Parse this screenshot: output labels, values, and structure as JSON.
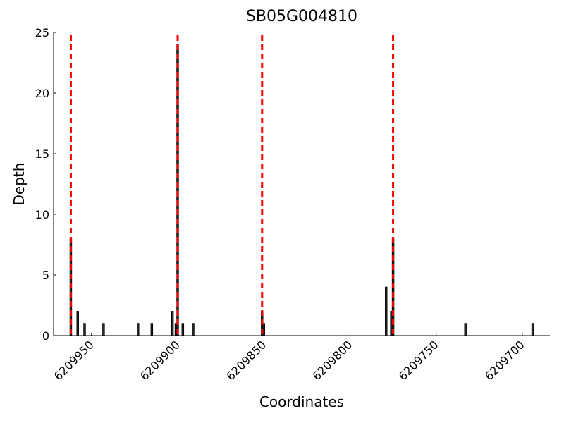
{
  "chart_data": {
    "type": "bar",
    "title": "SB05G004810",
    "x_label": "Coordinates",
    "y_label": "Depth",
    "x": [
      6209962,
      6209958,
      6209954,
      6209943,
      6209923,
      6209915,
      6209903,
      6209901,
      6209900,
      6209897,
      6209891,
      6209851,
      6209850,
      6209779,
      6209776,
      6209775,
      6209733,
      6209694
    ],
    "values": [
      8,
      2,
      1,
      1,
      1,
      1,
      2,
      1,
      24,
      1,
      1,
      2,
      1,
      4,
      2,
      8,
      1,
      1
    ],
    "color": "#333333",
    "edge_color": "#000000",
    "vlines": [
      6209962,
      6209900,
      6209851,
      6209775
    ],
    "vline_color": "#ff0000",
    "xlim": [
      6209972,
      6209684
    ],
    "xticks": [
      6209950,
      6209900,
      6209850,
      6209800,
      6209750,
      6209700
    ],
    "ylim": [
      0,
      25
    ],
    "yticks": [
      0,
      5,
      10,
      15,
      20,
      25
    ],
    "grid": false
  }
}
